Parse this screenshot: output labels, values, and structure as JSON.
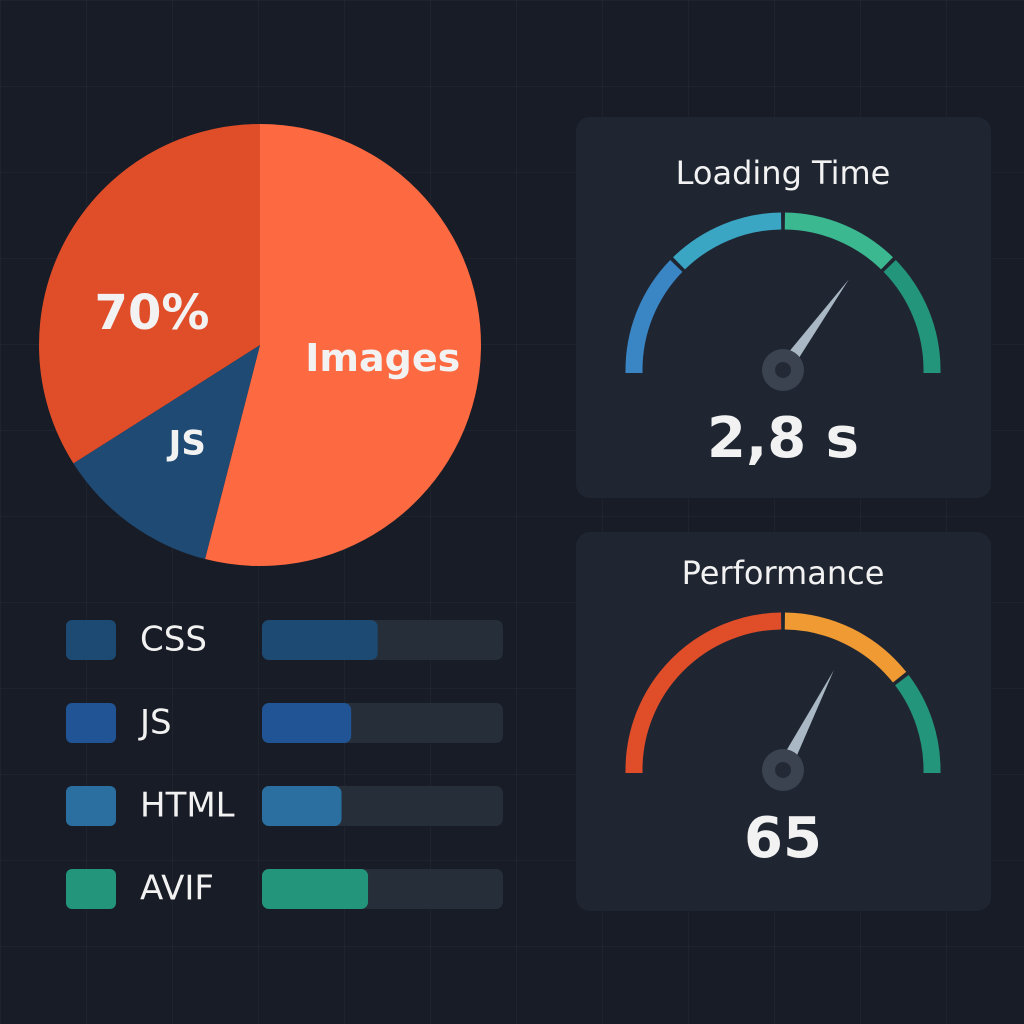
{
  "chart_data": [
    {
      "type": "pie",
      "categories": [
        "Images",
        "JS",
        null
      ],
      "values": [
        54,
        12,
        34
      ],
      "colors": [
        "#fd6a41",
        "#1f4a74",
        "#e04d29"
      ],
      "annotations": [
        "70%"
      ]
    },
    {
      "type": "bar",
      "orientation": "horizontal",
      "categories": [
        "CSS",
        "JS",
        "HTML",
        "AVIF"
      ],
      "values": [
        48,
        37,
        33,
        44
      ],
      "colors": [
        "#1d4a73",
        "#215494",
        "#2a6fa0",
        "#23957a"
      ],
      "xlim": [
        0,
        100
      ]
    },
    {
      "type": "gauge",
      "title": "Loading Time",
      "values": [
        2.8
      ],
      "value_labels": [
        "2,8 s"
      ],
      "ylim": [
        0,
        4
      ],
      "needle_color": "#a9b8c4",
      "bands": [
        {
          "from": 0,
          "to": 1,
          "color": "#3a86c4"
        },
        {
          "from": 1,
          "to": 2,
          "color": "#3aa6c4"
        },
        {
          "from": 2,
          "to": 3,
          "color": "#3cb891"
        },
        {
          "from": 3,
          "to": 4,
          "color": "#22957a"
        }
      ]
    },
    {
      "type": "gauge",
      "title": "Performance",
      "values": [
        65
      ],
      "ylim": [
        0,
        100
      ],
      "needle_color": "#a9b8c4",
      "bands": [
        {
          "from": 0,
          "to": 50,
          "color": "#e04d29"
        },
        {
          "from": 50,
          "to": 79,
          "color": "#ef9a32"
        },
        {
          "from": 79,
          "to": 100,
          "color": "#22957a"
        }
      ]
    }
  ]
}
